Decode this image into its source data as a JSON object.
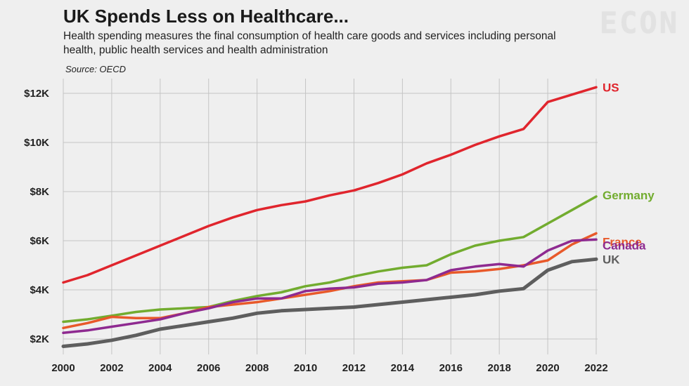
{
  "header": {
    "title": "UK Spends Less on Healthcare...",
    "subtitle": "Health spending measures the final consumption of health care goods and services including personal health, public health services and health administration",
    "source": "Source: OECD",
    "logo": "ECON"
  },
  "chart_data": {
    "type": "line",
    "title": "UK Spends Less on Healthcare...",
    "xlabel": "",
    "ylabel": "",
    "xlim": [
      2000,
      2022
    ],
    "ylim": [
      1500,
      12500
    ],
    "x_ticks": [
      {
        "value": 2000,
        "label": "2000"
      },
      {
        "value": 2002,
        "label": "2002"
      },
      {
        "value": 2004,
        "label": "2004"
      },
      {
        "value": 2006,
        "label": "2006"
      },
      {
        "value": 2008,
        "label": "2008"
      },
      {
        "value": 2010,
        "label": "2010"
      },
      {
        "value": 2012,
        "label": "2012"
      },
      {
        "value": 2014,
        "label": "2014"
      },
      {
        "value": 2016,
        "label": "2016"
      },
      {
        "value": 2018,
        "label": "2018"
      },
      {
        "value": 2020,
        "label": "2020"
      },
      {
        "value": 2022,
        "label": "2022"
      }
    ],
    "y_ticks": [
      {
        "value": 2000,
        "label": "$2K"
      },
      {
        "value": 4000,
        "label": "$4K"
      },
      {
        "value": 6000,
        "label": "$6K"
      },
      {
        "value": 8000,
        "label": "$8K"
      },
      {
        "value": 10000,
        "label": "$10K"
      },
      {
        "value": 12000,
        "label": "$12K"
      }
    ],
    "grid": true,
    "legend": "end-of-line labels",
    "x": [
      2000,
      2001,
      2002,
      2003,
      2004,
      2005,
      2006,
      2007,
      2008,
      2009,
      2010,
      2011,
      2012,
      2013,
      2014,
      2015,
      2016,
      2017,
      2018,
      2019,
      2020,
      2021,
      2022
    ],
    "series": [
      {
        "name": "US",
        "color": "#e0252d",
        "values": [
          4300,
          4600,
          5000,
          5400,
          5800,
          6200,
          6600,
          6950,
          7250,
          7450,
          7600,
          7850,
          8050,
          8350,
          8700,
          9150,
          9500,
          9900,
          10250,
          10550,
          11650,
          11950,
          12250
        ]
      },
      {
        "name": "Germany",
        "color": "#72ac2f",
        "values": [
          2700,
          2800,
          2950,
          3100,
          3200,
          3250,
          3300,
          3550,
          3750,
          3900,
          4150,
          4300,
          4550,
          4750,
          4900,
          5000,
          5450,
          5800,
          6000,
          6150,
          6700,
          7250,
          7800
        ]
      },
      {
        "name": "France",
        "color": "#e8592a",
        "values": [
          2450,
          2650,
          2900,
          2850,
          2850,
          3050,
          3300,
          3400,
          3500,
          3650,
          3800,
          3950,
          4150,
          4300,
          4350,
          4400,
          4700,
          4750,
          4850,
          5000,
          5200,
          5850,
          6300
        ]
      },
      {
        "name": "Canada",
        "color": "#8e2a90",
        "values": [
          2250,
          2350,
          2500,
          2650,
          2800,
          3050,
          3250,
          3500,
          3650,
          3650,
          3950,
          4050,
          4100,
          4250,
          4300,
          4400,
          4800,
          4950,
          5050,
          4950,
          5600,
          6000,
          6050
        ]
      },
      {
        "name": "UK",
        "color": "#5e5e5e",
        "values": [
          1700,
          1800,
          1950,
          2150,
          2400,
          2550,
          2700,
          2850,
          3050,
          3150,
          3200,
          3250,
          3300,
          3400,
          3500,
          3600,
          3700,
          3800,
          3950,
          4050,
          4800,
          5150,
          5250
        ]
      }
    ]
  }
}
